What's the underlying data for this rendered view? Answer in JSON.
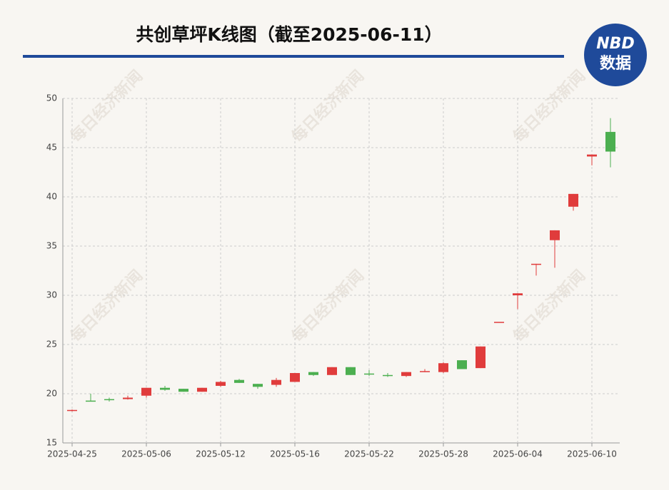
{
  "header": {
    "logo_top": "NBD",
    "logo_bottom": "数据",
    "watermark": "每日经济新闻"
  },
  "chart_data": {
    "type": "candlestick",
    "title": "共创草坪K线图（截至2025-06-11）",
    "categories": [
      "2025-04-25",
      null,
      null,
      null,
      "2025-05-06",
      null,
      null,
      null,
      "2025-05-12",
      null,
      null,
      null,
      "2025-05-16",
      null,
      null,
      null,
      "2025-05-22",
      null,
      null,
      null,
      "2025-05-28",
      null,
      null,
      null,
      "2025-06-04",
      null,
      null,
      null,
      "2025-06-10",
      null
    ],
    "open": [
      18.25,
      19.3,
      19.45,
      19.45,
      19.8,
      20.6,
      20.5,
      20.2,
      20.8,
      21.4,
      21.0,
      20.9,
      21.2,
      22.2,
      21.9,
      22.7,
      22.05,
      21.9,
      21.8,
      22.2,
      22.2,
      23.4,
      22.6,
      27.3,
      30.0,
      33.1,
      35.6,
      39.0,
      44.1,
      46.6
    ],
    "high": [
      18.4,
      20.0,
      19.6,
      19.8,
      20.6,
      20.8,
      20.5,
      20.6,
      21.3,
      21.5,
      21.0,
      21.6,
      22.1,
      22.2,
      22.7,
      22.7,
      22.4,
      22.1,
      22.2,
      22.5,
      23.2,
      23.4,
      24.8,
      27.3,
      30.2,
      33.2,
      36.6,
      40.3,
      44.3,
      48.0
    ],
    "low": [
      18.2,
      19.2,
      19.2,
      19.4,
      19.6,
      20.3,
      20.2,
      20.2,
      20.7,
      21.1,
      20.5,
      20.7,
      21.2,
      21.8,
      21.9,
      21.9,
      21.8,
      21.7,
      21.7,
      22.2,
      22.1,
      22.5,
      22.6,
      27.3,
      28.6,
      32.0,
      32.8,
      38.6,
      43.2,
      43.0
    ],
    "close": [
      18.35,
      19.2,
      19.35,
      19.6,
      20.6,
      20.4,
      20.2,
      20.6,
      21.2,
      21.1,
      20.7,
      21.4,
      22.1,
      21.9,
      22.7,
      21.9,
      21.95,
      21.8,
      22.2,
      22.3,
      23.1,
      22.5,
      24.8,
      27.3,
      30.2,
      33.2,
      36.6,
      40.3,
      44.3,
      44.6
    ],
    "up_color": "#e03c3c",
    "down_color": "#4caf50",
    "ylim": [
      15,
      50
    ],
    "yticks": [
      15,
      20,
      25,
      30,
      35,
      40,
      45,
      50
    ],
    "grid": true
  }
}
